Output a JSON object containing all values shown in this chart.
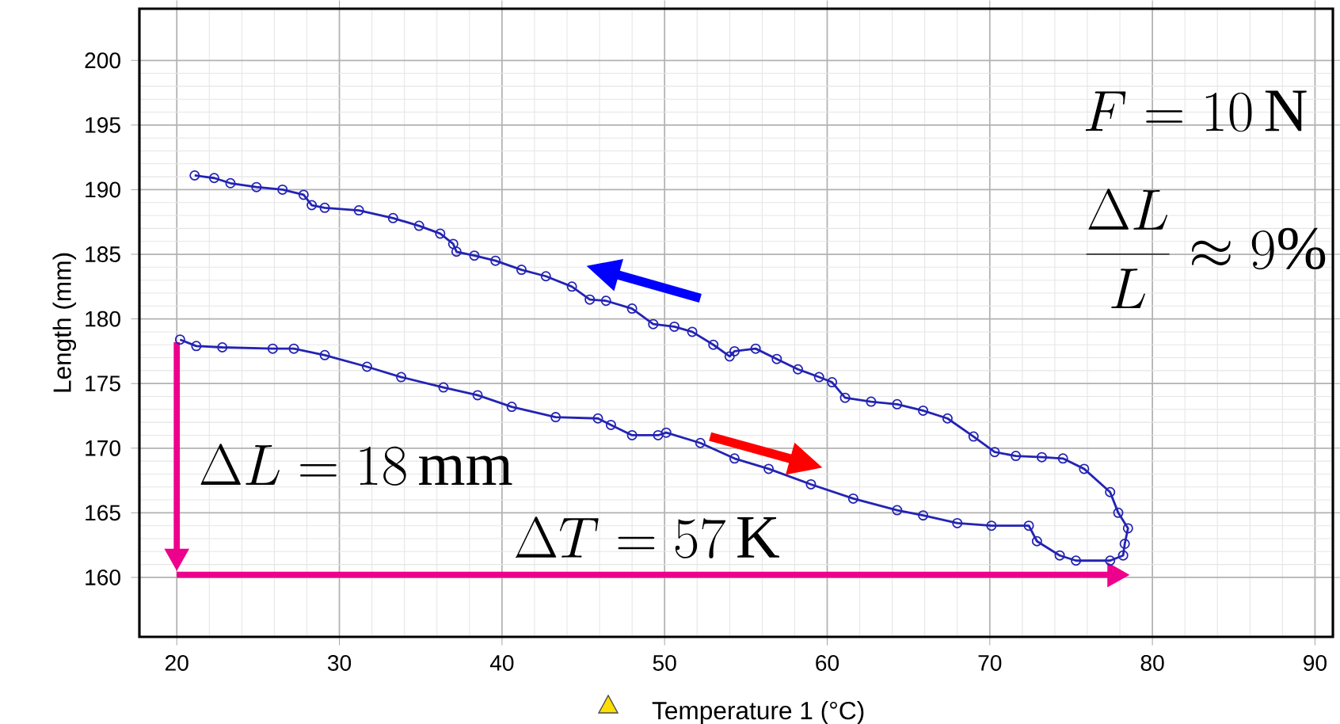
{
  "chart_data": {
    "type": "line",
    "xlabel": "Temperature 1 (°C)",
    "ylabel": "Length (mm)",
    "xlim": [
      17.7,
      91.1
    ],
    "ylim": [
      155.4,
      204.0
    ],
    "xticks": [
      20,
      30,
      40,
      50,
      60,
      70,
      80,
      90
    ],
    "yticks": [
      160,
      165,
      170,
      175,
      180,
      185,
      190,
      195,
      200
    ],
    "grid": true,
    "marker": "circle",
    "line_style": "solid",
    "annotations": [
      "F = 10\\,\\mathrm{N}",
      "\\frac{\\Delta L}{L} \\approx 9\\%",
      "\\Delta L = 18\\,\\mathrm{mm}",
      "\\Delta T = 57\\,\\mathrm{K}"
    ],
    "series": [
      {
        "color": "#2323b4",
        "x": [
          20.2,
          21.2,
          22.8,
          25.9,
          27.2,
          29.1,
          31.7,
          33.8,
          36.4,
          38.5,
          40.6,
          43.3,
          45.9,
          46.7,
          48.0,
          49.6,
          50.1,
          52.2,
          54.3,
          56.4,
          59.0,
          61.6,
          64.3,
          65.9,
          68.0,
          70.1,
          72.4,
          72.9,
          74.3,
          75.3,
          77.4,
          78.2,
          78.3,
          78.5,
          77.9,
          77.4,
          75.8,
          74.5,
          73.2,
          71.6,
          70.3,
          69.0,
          67.4,
          65.9,
          64.3,
          62.7,
          61.1,
          60.3,
          59.5,
          58.2,
          56.9,
          55.6,
          54.3,
          54.0,
          53.0,
          51.7,
          50.6,
          49.3,
          48.0,
          46.4,
          45.4,
          44.3,
          42.7,
          41.2,
          39.6,
          38.3,
          37.2,
          37.0,
          36.2,
          34.9,
          33.3,
          31.2,
          29.1,
          28.3,
          27.8,
          26.5,
          24.9,
          23.3,
          22.3,
          21.1
        ],
        "values": [
          178.4,
          177.9,
          177.8,
          177.7,
          177.7,
          177.2,
          176.3,
          175.5,
          174.7,
          174.1,
          173.2,
          172.4,
          172.3,
          171.8,
          171.0,
          171.0,
          171.2,
          170.4,
          169.2,
          168.4,
          167.2,
          166.1,
          165.2,
          164.8,
          164.2,
          164.0,
          164.0,
          162.8,
          161.7,
          161.3,
          161.3,
          161.7,
          162.6,
          163.8,
          165.0,
          166.6,
          168.4,
          169.2,
          169.3,
          169.4,
          169.7,
          170.9,
          172.3,
          172.9,
          173.4,
          173.6,
          173.9,
          175.1,
          175.5,
          176.1,
          176.9,
          177.7,
          177.5,
          177.1,
          178.0,
          179.0,
          179.4,
          179.6,
          180.8,
          181.4,
          181.5,
          182.5,
          183.3,
          183.8,
          184.5,
          184.9,
          185.2,
          185.8,
          186.6,
          187.2,
          187.8,
          188.4,
          188.6,
          188.8,
          189.6,
          190.0,
          190.2,
          190.5,
          190.9,
          191.1
        ]
      }
    ]
  }
}
